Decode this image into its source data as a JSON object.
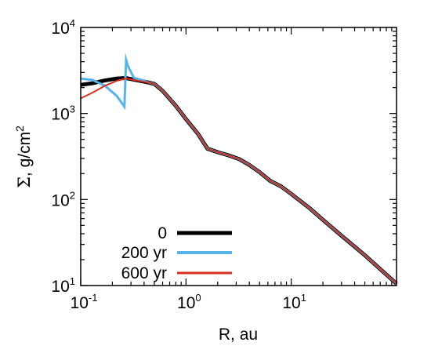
{
  "chart_data": {
    "type": "line",
    "xscale": "log",
    "yscale": "log",
    "xlim": [
      0.1,
      100
    ],
    "ylim": [
      10,
      10000
    ],
    "xlabel": "R, au",
    "ylabel_symbol": "Σ",
    "ylabel_text": ", g/cm",
    "ylabel_sup": "2",
    "grid": false,
    "legend_position": "bottom-left",
    "x_ticks": [
      {
        "value": 0.1,
        "base": "10",
        "exp": "-1"
      },
      {
        "value": 1,
        "base": "10",
        "exp": "0"
      },
      {
        "value": 10,
        "base": "10",
        "exp": "1"
      }
    ],
    "y_ticks": [
      {
        "value": 10,
        "base": "10",
        "exp": "1"
      },
      {
        "value": 100,
        "base": "10",
        "exp": "2"
      },
      {
        "value": 1000,
        "base": "10",
        "exp": "3"
      },
      {
        "value": 10000,
        "base": "10",
        "exp": "4"
      }
    ],
    "series": [
      {
        "name": "0",
        "color": "#000000",
        "width": 5,
        "x": [
          0.1,
          0.13,
          0.17,
          0.22,
          0.27,
          0.32,
          0.38,
          0.44,
          0.5,
          0.6,
          0.8,
          1.0,
          1.3,
          1.6,
          2.0,
          2.5,
          3.2,
          4.0,
          5.0,
          6.3,
          8.0,
          10,
          15,
          20,
          30,
          50,
          100
        ],
        "y": [
          2150,
          2250,
          2420,
          2550,
          2580,
          2470,
          2380,
          2290,
          2210,
          1830,
          1230,
          860,
          580,
          390,
          355,
          328,
          295,
          252,
          208,
          165,
          142,
          116,
          79,
          58,
          38,
          22.5,
          10.5
        ]
      },
      {
        "name": "200 yr",
        "color": "#56b4e9",
        "width": 3,
        "x": [
          0.1,
          0.13,
          0.17,
          0.22,
          0.26,
          0.27,
          0.28,
          0.32,
          0.38,
          0.44,
          0.5,
          0.6,
          0.8,
          1.0,
          1.3,
          1.6,
          2.0,
          2.5,
          3.2,
          4.0,
          5.0,
          6.3,
          8.0,
          10,
          15,
          20,
          30,
          50,
          100
        ],
        "y": [
          2550,
          2450,
          2100,
          1600,
          1200,
          4200,
          3600,
          2600,
          2450,
          2290,
          2210,
          1830,
          1230,
          860,
          580,
          390,
          355,
          328,
          295,
          252,
          208,
          165,
          142,
          116,
          79,
          58,
          38,
          22.5,
          10.5
        ]
      },
      {
        "name": "600 yr",
        "color": "#d7301f",
        "width": 2,
        "x": [
          0.1,
          0.13,
          0.17,
          0.22,
          0.27,
          0.32,
          0.38,
          0.44,
          0.5,
          0.6,
          0.8,
          1.0,
          1.3,
          1.6,
          2.0,
          2.5,
          3.2,
          4.0,
          5.0,
          6.3,
          8.0,
          10,
          15,
          20,
          30,
          50,
          100
        ],
        "y": [
          1500,
          1750,
          2100,
          2400,
          2550,
          2450,
          2360,
          2280,
          2210,
          1830,
          1230,
          860,
          580,
          390,
          355,
          328,
          295,
          252,
          208,
          165,
          142,
          116,
          79,
          58,
          38,
          22.5,
          10.5
        ]
      }
    ]
  }
}
